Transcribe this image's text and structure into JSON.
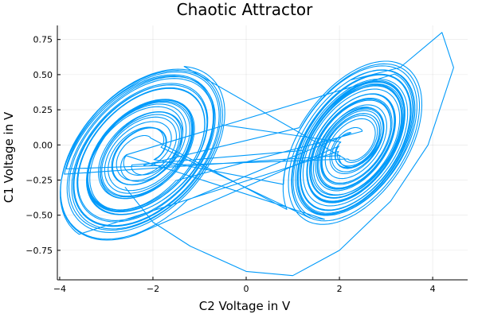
{
  "chart_data": {
    "type": "line",
    "title": "Chaotic Attractor",
    "xlabel": "C2 Voltage in V",
    "ylabel": "C1 Voltage in V",
    "xlim": [
      -4.05,
      4.75
    ],
    "ylim": [
      -0.96,
      0.85
    ],
    "x_ticks": [
      -4,
      -2,
      0,
      2,
      4
    ],
    "y_ticks": [
      -0.75,
      -0.5,
      -0.25,
      0.0,
      0.25,
      0.5,
      0.75
    ],
    "x_tick_labels": [
      "−4",
      "−2",
      "0",
      "2",
      "4"
    ],
    "y_tick_labels": [
      "−0.75",
      "−0.50",
      "−0.25",
      "0.00",
      "0.25",
      "0.50",
      "0.75"
    ],
    "grid": true,
    "legend": "none",
    "series": [
      {
        "color": "#009AFA",
        "attractor": {
          "left_center": [
            -2.2,
            -0.05
          ],
          "right_center": [
            2.3,
            0.0
          ],
          "left_orbit_x_range": [
            -3.95,
            -0.6
          ],
          "left_orbit_y_range": [
            -0.7,
            0.72
          ],
          "right_orbit_x_range": [
            0.85,
            3.75
          ],
          "right_orbit_y_range": [
            -0.72,
            0.68
          ]
        },
        "excursion_points": [
          [
            3.3,
            0.55
          ],
          [
            4.2,
            0.8
          ],
          [
            4.45,
            0.55
          ],
          [
            3.9,
            0.0
          ],
          [
            3.1,
            -0.4
          ],
          [
            2.0,
            -0.75
          ],
          [
            1.0,
            -0.93
          ],
          [
            0.0,
            -0.9
          ],
          [
            -1.2,
            -0.72
          ],
          [
            -2.0,
            -0.55
          ],
          [
            -2.6,
            -0.3
          ]
        ]
      }
    ]
  }
}
